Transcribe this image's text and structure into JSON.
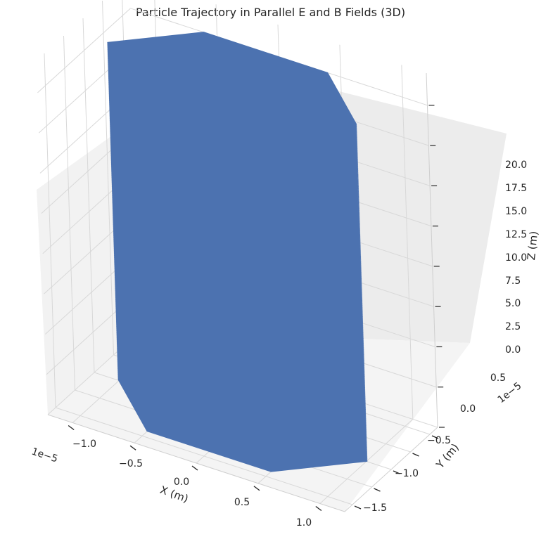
{
  "chart_data": {
    "type": "line",
    "projection": "3d",
    "title": "Particle Trajectory in Parallel E and B Fields (3D)",
    "xlabel": "X (m)",
    "ylabel": "Y (m)",
    "zlabel": "Z (m)",
    "x_offset_text": "1e−5",
    "y_offset_text": "1e−5",
    "x_ticks": [
      "−1.0",
      "−0.5",
      "0.0",
      "0.5",
      "1.0"
    ],
    "y_ticks": [
      "−1.5",
      "−1.0",
      "−0.5",
      "0.0",
      "0.5"
    ],
    "z_ticks": [
      "0.0",
      "2.5",
      "5.0",
      "7.5",
      "10.0",
      "12.5",
      "15.0",
      "17.5",
      "20.0"
    ],
    "xlim": [
      -1.2e-05,
      1.2e-05
    ],
    "ylim": [
      -1.7e-05,
      7e-06
    ],
    "zlim": [
      0,
      22
    ],
    "grid": true,
    "series": [
      {
        "color": "#4c72b0",
        "shape": "helix",
        "center_x": 0.0,
        "center_y": -5e-06,
        "radius": 1e-05,
        "z_start": 0,
        "z_end": 21
      }
    ]
  }
}
